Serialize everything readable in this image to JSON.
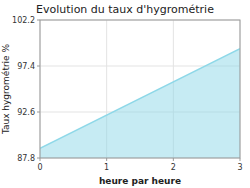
{
  "chart_data": {
    "type": "area",
    "title": "Evolution du taux d'hygrométrie",
    "xlabel": "heure par heure",
    "ylabel": "Taux hygrométrie %",
    "x": [
      0,
      3
    ],
    "values": [
      88.8,
      99.2
    ],
    "color": "#8ed8e8",
    "xlim": [
      0,
      3
    ],
    "ylim": [
      87.8,
      102.2
    ],
    "xticks": [
      0,
      1,
      2,
      3
    ],
    "yticks": [
      87.8,
      92.6,
      97.4,
      102.2
    ],
    "grid": true
  }
}
